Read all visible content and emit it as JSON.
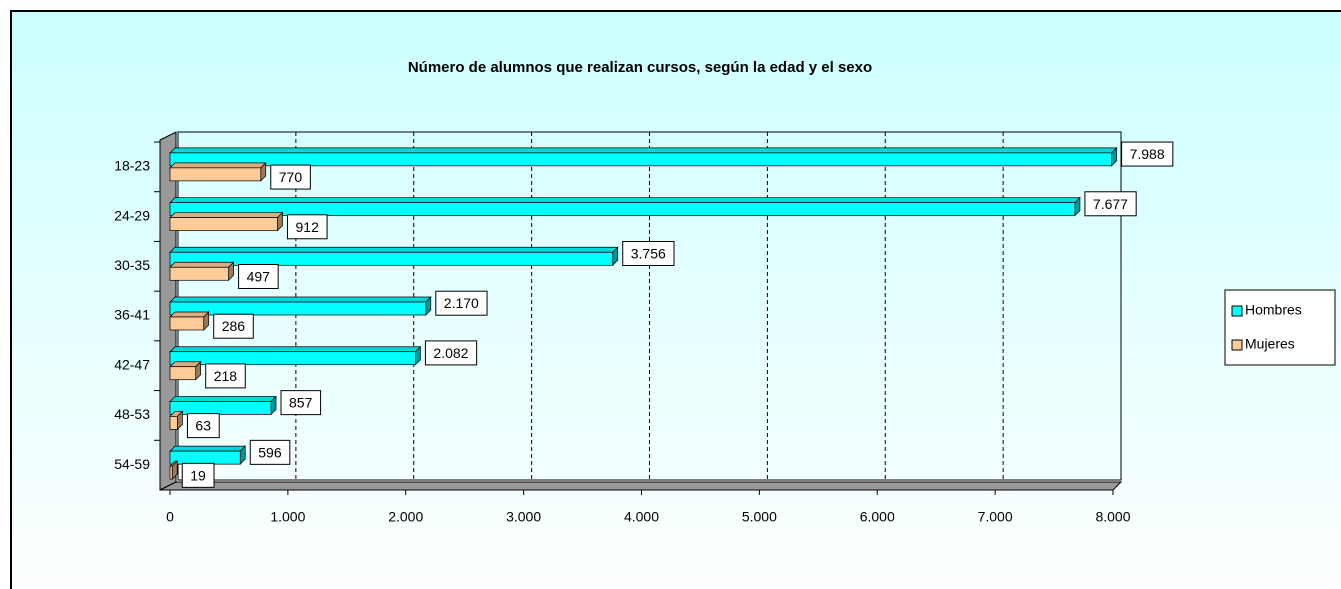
{
  "chart_data": {
    "type": "bar",
    "orientation": "horizontal",
    "title": "Número de alumnos que realizan cursos, según  la edad y el sexo",
    "categories": [
      "18-23",
      "24-29",
      "30-35",
      "36-41",
      "42-47",
      "48-53",
      "54-59"
    ],
    "series": [
      {
        "name": "Hombres",
        "color": "#00ffff",
        "values": [
          7988,
          7677,
          3756,
          2170,
          2082,
          857,
          596
        ],
        "value_labels": [
          "7.988",
          "7.677",
          "3.756",
          "2.170",
          "2.082",
          "857",
          "596"
        ]
      },
      {
        "name": "Mujeres",
        "color": "#ffcc99",
        "values": [
          770,
          912,
          497,
          286,
          218,
          63,
          19
        ]
      }
    ],
    "xlim": [
      0,
      8000
    ],
    "xticks": [
      0,
      {
        "value": 1000,
        "label": "1.000"
      },
      {
        "value": 2000,
        "label": "2.000"
      },
      {
        "value": 3000,
        "label": "3.000"
      },
      {
        "value": 4000,
        "label": "4.000"
      },
      {
        "value": 5000,
        "label": "5.000"
      },
      {
        "value": 6000,
        "label": "6.000"
      },
      {
        "value": 7000,
        "label": "7.000"
      },
      {
        "value": 8000,
        "label": "8.000"
      }
    ],
    "grid": true,
    "legend": "right"
  }
}
